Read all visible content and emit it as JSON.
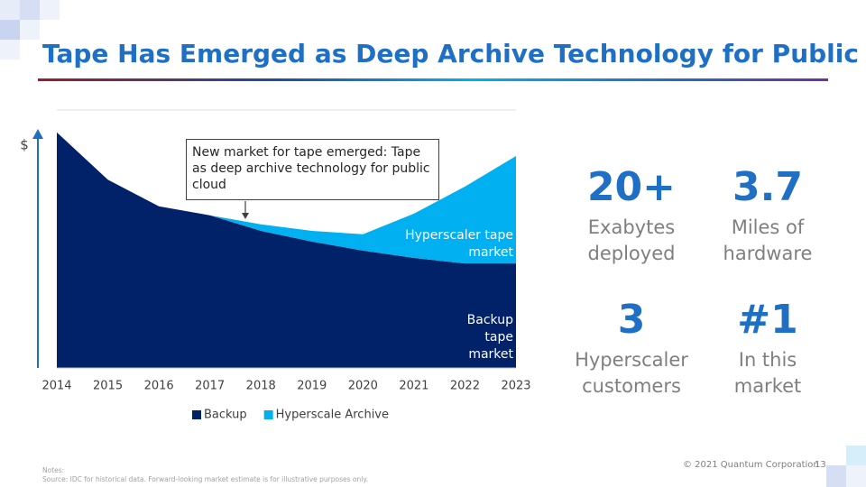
{
  "title": "Tape Has Emerged as Deep Archive Technology for Public Cloud",
  "chart_data": {
    "type": "stacked-area",
    "y_label": "$",
    "categories": [
      "2014",
      "2015",
      "2016",
      "2017",
      "2018",
      "2019",
      "2020",
      "2021",
      "2022",
      "2023"
    ],
    "series": [
      {
        "name": "Backup",
        "color": "#012169",
        "values": [
          5.48,
          4.38,
          3.76,
          3.55,
          3.19,
          2.94,
          2.73,
          2.56,
          2.43,
          2.43
        ]
      },
      {
        "name": "Hyperscale Archive",
        "color": "#00b0f0",
        "values": [
          null,
          null,
          null,
          0,
          0.15,
          0.25,
          0.38,
          1.03,
          1.79,
          2.5
        ]
      }
    ],
    "ylim": [
      0,
      6
    ],
    "annotation": "New market for tape emerged:  Tape as deep archive technology for public cloud",
    "area_labels": [
      "Backup tape market",
      "Hyperscaler tape market"
    ]
  },
  "stats": [
    {
      "value": "20+",
      "label": "Exabytes deployed"
    },
    {
      "value": "3.7",
      "label": "Miles of hardware"
    },
    {
      "value": "3",
      "label": "Hyperscaler customers"
    },
    {
      "value": "#1",
      "label": "In this market"
    }
  ],
  "footer": {
    "copyright": "© 2021 Quantum Corporation",
    "page": "13",
    "notes": "Notes:",
    "source": "Source:  IDC for historical data.  Forward-looking market estimate is for illustrative purposes only."
  }
}
